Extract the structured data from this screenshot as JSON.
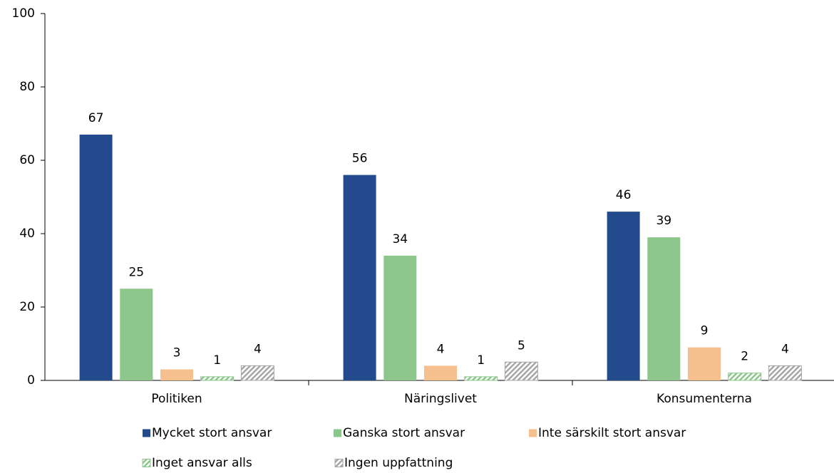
{
  "chart_data": {
    "type": "bar",
    "categories": [
      "Politiken",
      "Näringslivet",
      "Konsumenterna"
    ],
    "series": [
      {
        "name": "Mycket stort ansvar",
        "color": "#234a8c",
        "values": [
          67,
          56,
          46
        ]
      },
      {
        "name": "Ganska stort ansvar",
        "color": "#8cc68a",
        "values": [
          25,
          34,
          39
        ]
      },
      {
        "name": "Inte särskilt stort ansvar",
        "color": "#f5c08e",
        "values": [
          3,
          4,
          9
        ]
      },
      {
        "name": "Inget ansvar alls",
        "color": "#8cc68a",
        "pattern": "hatch",
        "values": [
          1,
          1,
          2
        ]
      },
      {
        "name": "Ingen uppfattning",
        "color": "#a6a6a6",
        "pattern": "hatch",
        "values": [
          4,
          5,
          4
        ]
      }
    ],
    "ylim": [
      0,
      100
    ],
    "yticks": [
      0,
      20,
      40,
      60,
      80,
      100
    ],
    "legend": "bottom"
  }
}
